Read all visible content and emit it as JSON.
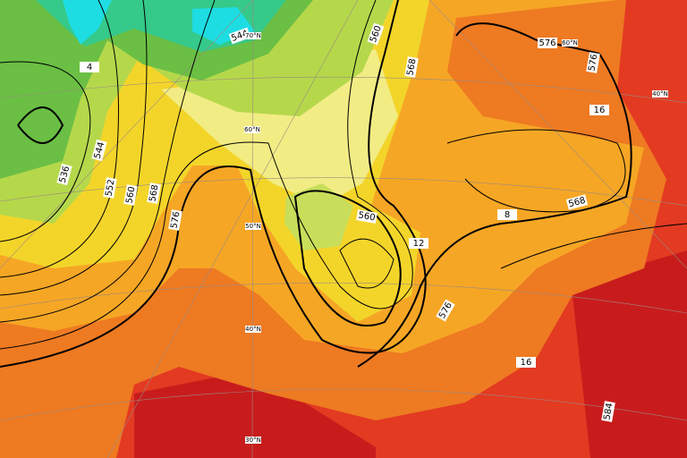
{
  "contour_labels": [
    "544",
    "536",
    "544",
    "552",
    "560",
    "568",
    "576",
    "560",
    "568",
    "576",
    "576",
    "560",
    "568",
    "576",
    "584",
    "4",
    "8",
    "12",
    "16",
    "16"
  ],
  "latitude_labels": [
    "70°N",
    "60°N",
    "50°N",
    "40°N",
    "30°N",
    "60°N",
    "40°N"
  ]
}
